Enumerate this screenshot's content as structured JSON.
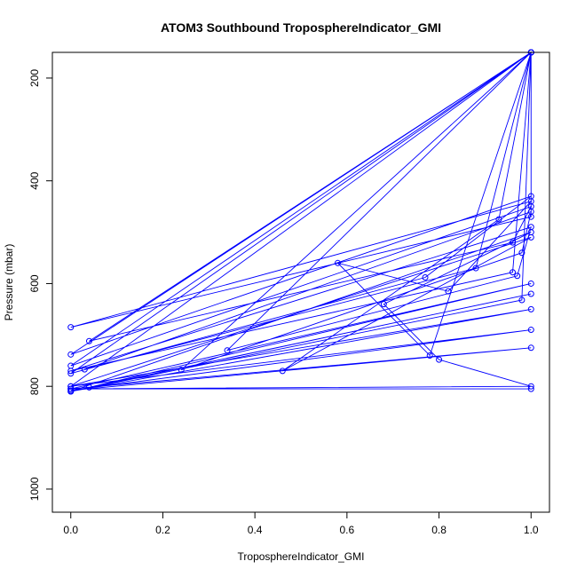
{
  "chart_data": {
    "type": "line",
    "title": "ATOM3 Southbound TroposphereIndicator_GMI",
    "xlabel": "TroposphereIndicator_GMI",
    "ylabel": "Pressure (mbar)",
    "xlim": [
      -0.04,
      1.04
    ],
    "ylim": [
      1045,
      150
    ],
    "y_inverted": true,
    "xticks": [
      0.0,
      0.2,
      0.4,
      0.6,
      0.8,
      1.0
    ],
    "xtick_labels": [
      "0.0",
      "0.2",
      "0.4",
      "0.6",
      "0.8",
      "1.0"
    ],
    "yticks": [
      200,
      400,
      600,
      800,
      1000
    ],
    "ytick_labels": [
      "200",
      "400",
      "600",
      "800",
      "1000"
    ],
    "grid": false,
    "series_color": "#0000ff",
    "marker": "open-circle",
    "series": [
      {
        "x": [
          1.0,
          1.0,
          0.0,
          1.0,
          0.82,
          0.58,
          0.78,
          1.0,
          0.0,
          1.0,
          0.96,
          0.04,
          1.0,
          0.0,
          1.0,
          0.77,
          0.0,
          1.0,
          0.93,
          0.46,
          1.0,
          0.0,
          1.0,
          0.88,
          0.03,
          1.0,
          0.98,
          0.24,
          1.0,
          0.96,
          0.0,
          1.0,
          0.97,
          0.34,
          1.0,
          0.98,
          0.0,
          1.0,
          0.68,
          0.8,
          1.0,
          0.0,
          1.0,
          0.04,
          1.0,
          0.0,
          1.0,
          0.0,
          1.0,
          0.0,
          1.0,
          0.0,
          1.0
        ],
        "y": [
          150,
          470,
          685,
          440,
          615,
          560,
          740,
          150,
          760,
          450,
          520,
          712,
          150,
          738,
          430,
          588,
          775,
          150,
          475,
          770,
          510,
          800,
          150,
          570,
          767,
          460,
          540,
          768,
          150,
          578,
          770,
          490,
          585,
          730,
          150,
          632,
          810,
          500,
          640,
          748,
          800,
          805,
          600,
          802,
          620,
          810,
          650,
          800,
          690,
          808,
          725,
          805,
          805
        ]
      }
    ]
  }
}
